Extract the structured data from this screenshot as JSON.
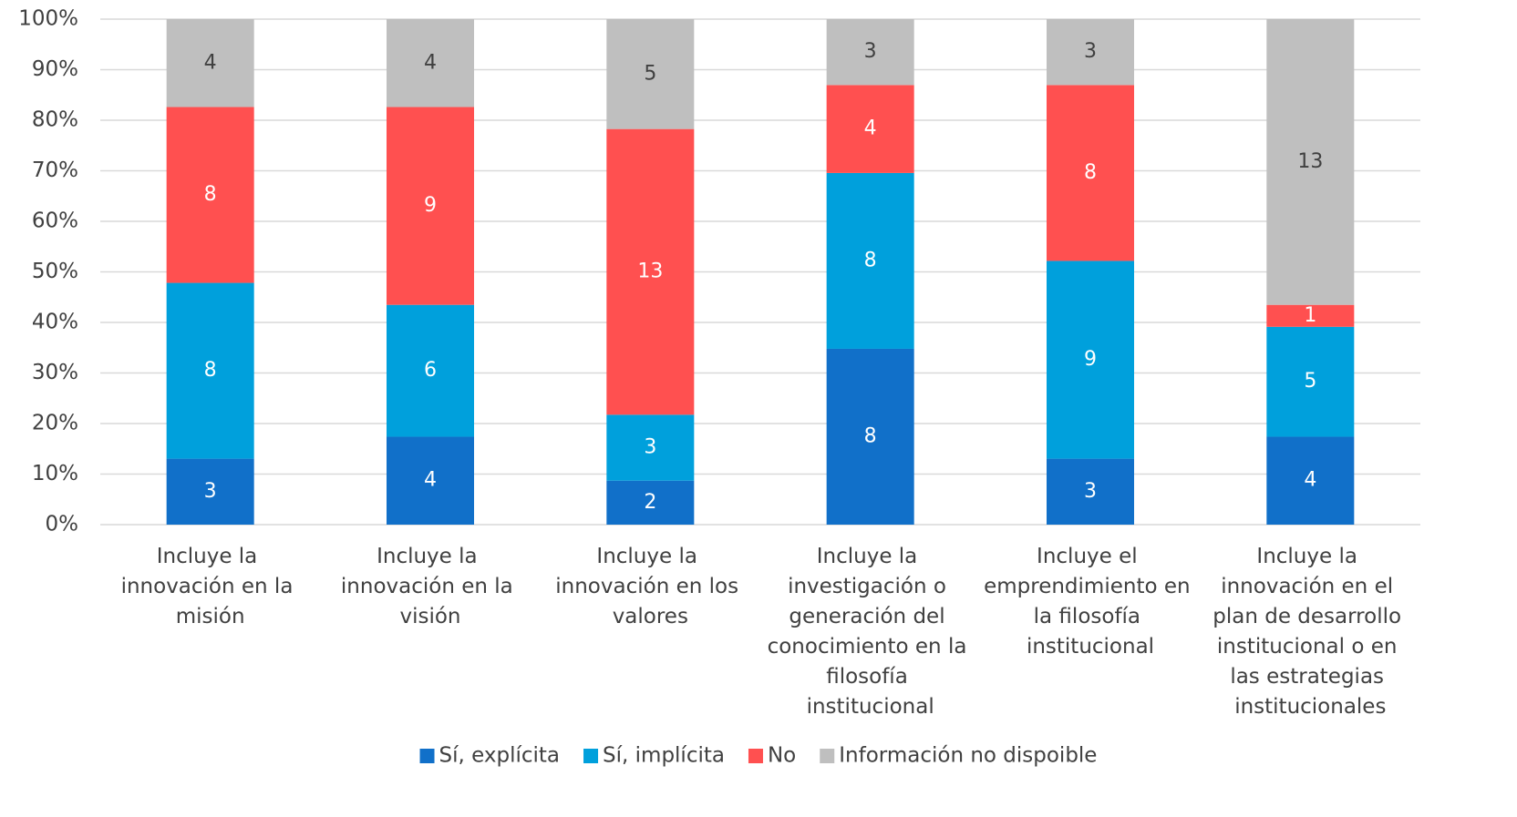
{
  "chart_data": {
    "type": "bar",
    "stacked": "percent",
    "categories": [
      "Incluye la innovación en la misión",
      "Incluye la innovación en la visión",
      "Incluye la innovación en los valores",
      "Incluye la investigación o generación del conocimiento en la filosofía institucional",
      "Incluye el emprendimiento en la filosofía institucional",
      "Incluye la innovación en el plan de desarrollo institucional o en las estrategias institucionales"
    ],
    "series": [
      {
        "name": "Sí, explícita",
        "color": "#1170c9",
        "label_color": "#ffffff",
        "values": [
          3,
          4,
          2,
          8,
          3,
          4
        ]
      },
      {
        "name": "Sí, implícita",
        "color": "#00a0dc",
        "label_color": "#ffffff",
        "values": [
          8,
          6,
          3,
          8,
          9,
          5
        ]
      },
      {
        "name": "No",
        "color": "#ff5050",
        "label_color": "#ffffff",
        "values": [
          8,
          9,
          13,
          4,
          8,
          1
        ]
      },
      {
        "name": "Información no dispoible",
        "color": "#bfbfbf",
        "label_color": "#404040",
        "values": [
          4,
          4,
          5,
          3,
          3,
          13
        ]
      }
    ],
    "ylim": [
      0,
      100
    ],
    "yticks": [
      {
        "value": 0,
        "label": "0%"
      },
      {
        "value": 10,
        "label": "10%"
      },
      {
        "value": 20,
        "label": "20%"
      },
      {
        "value": 30,
        "label": "30%"
      },
      {
        "value": 40,
        "label": "40%"
      },
      {
        "value": 50,
        "label": "50%"
      },
      {
        "value": 60,
        "label": "60%"
      },
      {
        "value": 70,
        "label": "70%"
      },
      {
        "value": 80,
        "label": "80%"
      },
      {
        "value": 90,
        "label": "90%"
      },
      {
        "value": 100,
        "label": "100%"
      }
    ],
    "grid": true,
    "legend": "bottom"
  }
}
